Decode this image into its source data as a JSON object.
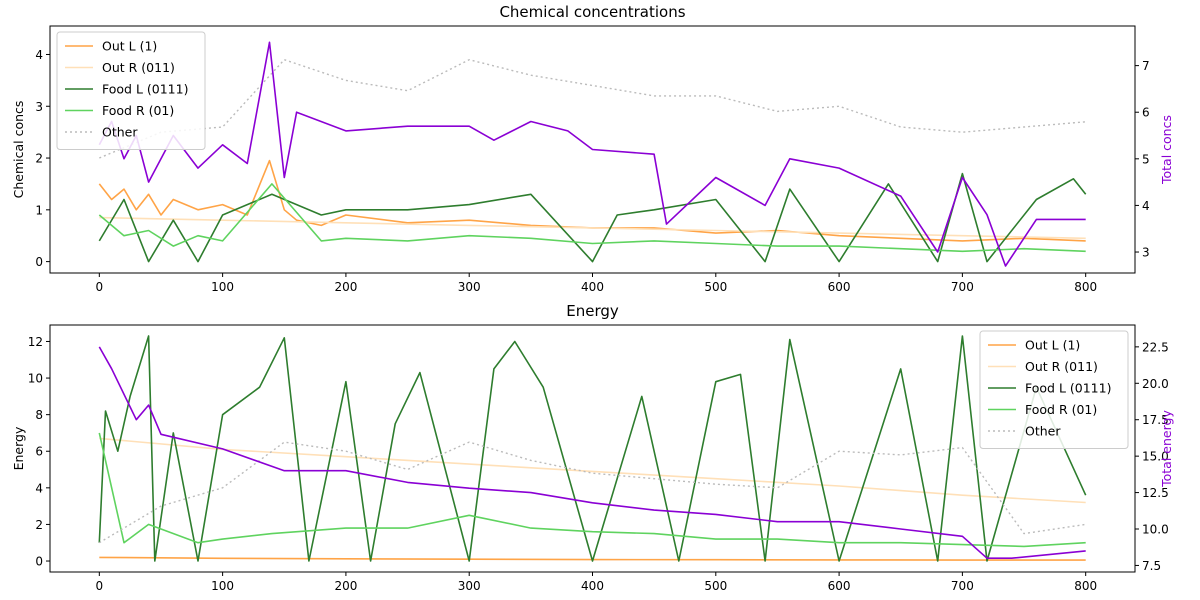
{
  "chart_data": [
    {
      "type": "line",
      "title": "Chemical concentrations",
      "xlabel": "",
      "ylabel": "Chemical concs",
      "y2label": "Total concs",
      "xlim": [
        -40,
        840
      ],
      "ylim": [
        -0.22,
        4.55
      ],
      "y2lim": [
        2.55,
        7.85
      ],
      "xticks": [
        0,
        100,
        200,
        300,
        400,
        500,
        600,
        700,
        800
      ],
      "yticks": [
        0,
        1,
        2,
        3,
        4
      ],
      "y2ticks": [
        3,
        4,
        5,
        6,
        7
      ],
      "legend": "top-left",
      "series": [
        {
          "name": "Out L (1)",
          "color": "#ffa447",
          "axis": "left",
          "style": "solid",
          "x": [
            0,
            10,
            20,
            30,
            40,
            50,
            60,
            80,
            100,
            120,
            138,
            150,
            160,
            180,
            200,
            250,
            300,
            350,
            400,
            450,
            500,
            550,
            600,
            650,
            700,
            750,
            800
          ],
          "values": [
            1.5,
            1.2,
            1.4,
            1.0,
            1.3,
            0.9,
            1.2,
            1.0,
            1.1,
            0.9,
            1.95,
            1.0,
            0.8,
            0.7,
            0.9,
            0.75,
            0.8,
            0.7,
            0.65,
            0.65,
            0.55,
            0.6,
            0.5,
            0.45,
            0.4,
            0.45,
            0.4
          ]
        },
        {
          "name": "Out R (011)",
          "color": "#ffe0b8",
          "axis": "left",
          "style": "solid",
          "x": [
            0,
            100,
            200,
            300,
            400,
            500,
            600,
            700,
            800
          ],
          "values": [
            0.85,
            0.8,
            0.75,
            0.7,
            0.65,
            0.6,
            0.55,
            0.5,
            0.45
          ]
        },
        {
          "name": "Food L (0111)",
          "color": "#2e7d2e",
          "axis": "left",
          "style": "solid",
          "x": [
            0,
            20,
            40,
            60,
            80,
            100,
            140,
            180,
            200,
            250,
            300,
            350,
            400,
            420,
            450,
            500,
            540,
            560,
            600,
            640,
            680,
            700,
            720,
            760,
            790,
            800
          ],
          "values": [
            0.4,
            1.2,
            0.0,
            0.8,
            0.0,
            0.9,
            1.3,
            0.9,
            1.0,
            1.0,
            1.1,
            1.3,
            0.0,
            0.9,
            1.0,
            1.2,
            0.0,
            1.4,
            0.0,
            1.5,
            0.0,
            1.7,
            0.0,
            1.2,
            1.6,
            1.3
          ]
        },
        {
          "name": "Food R (01)",
          "color": "#5fd35f",
          "axis": "left",
          "style": "solid",
          "x": [
            0,
            20,
            40,
            60,
            80,
            100,
            140,
            180,
            200,
            250,
            300,
            350,
            400,
            450,
            500,
            550,
            600,
            650,
            700,
            750,
            800
          ],
          "values": [
            0.9,
            0.5,
            0.6,
            0.3,
            0.5,
            0.4,
            1.5,
            0.4,
            0.45,
            0.4,
            0.5,
            0.45,
            0.35,
            0.4,
            0.35,
            0.3,
            0.3,
            0.25,
            0.2,
            0.25,
            0.2
          ]
        },
        {
          "name": "Other",
          "color": "#bbbbbb",
          "axis": "left",
          "style": "dotted",
          "x": [
            0,
            50,
            100,
            150,
            200,
            250,
            300,
            350,
            400,
            450,
            500,
            550,
            600,
            650,
            700,
            750,
            800
          ],
          "values": [
            2.0,
            2.5,
            2.6,
            3.9,
            3.5,
            3.3,
            3.9,
            3.6,
            3.4,
            3.2,
            3.2,
            2.9,
            3.0,
            2.6,
            2.5,
            2.6,
            2.7
          ]
        },
        {
          "name": "",
          "color": "#8a00d4",
          "axis": "right",
          "style": "solid",
          "x": [
            0,
            10,
            20,
            30,
            40,
            60,
            80,
            100,
            120,
            138,
            150,
            160,
            200,
            250,
            300,
            320,
            350,
            380,
            400,
            450,
            460,
            500,
            540,
            560,
            600,
            650,
            680,
            700,
            720,
            735,
            760,
            800
          ],
          "values": [
            5.3,
            5.8,
            5.0,
            5.5,
            4.5,
            5.5,
            4.8,
            5.3,
            4.9,
            7.5,
            4.6,
            6.0,
            5.6,
            5.7,
            5.7,
            5.4,
            5.8,
            5.6,
            5.2,
            5.1,
            3.6,
            4.6,
            4.0,
            5.0,
            4.8,
            4.2,
            3.0,
            4.6,
            3.8,
            2.7,
            3.7,
            3.7
          ]
        }
      ]
    },
    {
      "type": "line",
      "title": "Energy",
      "xlabel": "",
      "ylabel": "Energy",
      "y2label": "Total energy",
      "xlim": [
        -40,
        840
      ],
      "ylim": [
        -0.6,
        12.9
      ],
      "y2lim": [
        7.05,
        24.0
      ],
      "xticks": [
        0,
        100,
        200,
        300,
        400,
        500,
        600,
        700,
        800
      ],
      "yticks": [
        0,
        2,
        4,
        6,
        8,
        10,
        12
      ],
      "y2ticks": [
        7.5,
        10.0,
        12.5,
        15.0,
        17.5,
        20.0,
        22.5
      ],
      "y2ticklabels": [
        "7.5",
        "10.0",
        "12.5",
        "15.0",
        "17.5",
        "20.0",
        "22.5"
      ],
      "legend": "top-right",
      "series": [
        {
          "name": "Out L (1)",
          "color": "#ffa447",
          "axis": "left",
          "style": "solid",
          "x": [
            0,
            100,
            200,
            300,
            400,
            500,
            600,
            700,
            800
          ],
          "values": [
            0.2,
            0.15,
            0.12,
            0.1,
            0.08,
            0.07,
            0.06,
            0.05,
            0.05
          ]
        },
        {
          "name": "Out R (011)",
          "color": "#ffe0b8",
          "axis": "left",
          "style": "solid",
          "x": [
            0,
            100,
            200,
            300,
            400,
            500,
            600,
            700,
            800
          ],
          "values": [
            6.7,
            6.1,
            5.7,
            5.3,
            4.9,
            4.5,
            4.1,
            3.6,
            3.2
          ]
        },
        {
          "name": "Food L (0111)",
          "color": "#2e7d2e",
          "axis": "left",
          "style": "solid",
          "x": [
            0,
            5,
            15,
            25,
            40,
            45,
            60,
            80,
            100,
            130,
            150,
            170,
            200,
            220,
            240,
            260,
            300,
            320,
            337,
            360,
            400,
            440,
            470,
            500,
            520,
            540,
            560,
            600,
            650,
            680,
            700,
            720,
            760,
            800
          ],
          "values": [
            1.0,
            8.2,
            6.0,
            9.0,
            12.3,
            0.0,
            7.0,
            0.0,
            8.0,
            9.5,
            12.2,
            0.0,
            9.8,
            0.0,
            7.5,
            10.3,
            0.0,
            10.5,
            12.0,
            9.5,
            0.0,
            9.0,
            0.0,
            9.8,
            10.2,
            0.0,
            12.1,
            0.0,
            10.5,
            0.0,
            12.3,
            0.0,
            9.5,
            3.6
          ]
        },
        {
          "name": "Food R (01)",
          "color": "#5fd35f",
          "axis": "left",
          "style": "solid",
          "x": [
            0,
            20,
            40,
            80,
            100,
            140,
            200,
            250,
            300,
            350,
            400,
            450,
            500,
            550,
            600,
            650,
            700,
            750,
            800
          ],
          "values": [
            7.0,
            1.0,
            2.0,
            1.0,
            1.2,
            1.5,
            1.8,
            1.8,
            2.5,
            1.8,
            1.6,
            1.5,
            1.2,
            1.2,
            1.0,
            1.0,
            0.9,
            0.8,
            1.0
          ]
        },
        {
          "name": "Other",
          "color": "#bbbbbb",
          "axis": "left",
          "style": "dotted",
          "x": [
            0,
            50,
            100,
            150,
            200,
            250,
            300,
            350,
            400,
            450,
            500,
            550,
            600,
            650,
            700,
            750,
            800
          ],
          "values": [
            1.0,
            3.0,
            4.0,
            6.5,
            6.0,
            5.0,
            6.5,
            5.5,
            4.8,
            4.5,
            4.2,
            4.0,
            6.0,
            5.8,
            6.2,
            1.5,
            2.0
          ]
        },
        {
          "name": "",
          "color": "#8a00d4",
          "axis": "right",
          "style": "solid",
          "x": [
            0,
            10,
            30,
            40,
            50,
            100,
            150,
            200,
            250,
            300,
            350,
            400,
            450,
            500,
            550,
            600,
            650,
            700,
            720,
            740,
            800
          ],
          "values": [
            22.5,
            21.0,
            17.5,
            18.5,
            16.5,
            15.5,
            14.0,
            14.0,
            13.2,
            12.8,
            12.5,
            11.8,
            11.3,
            11.0,
            10.5,
            10.5,
            10.0,
            9.5,
            8.0,
            8.0,
            8.5
          ]
        }
      ]
    }
  ]
}
